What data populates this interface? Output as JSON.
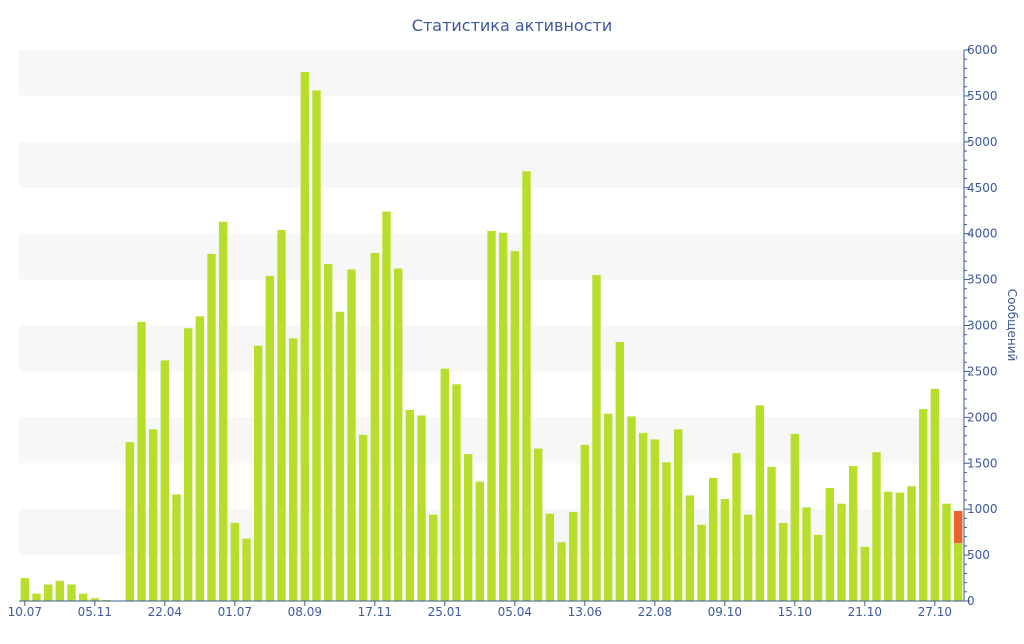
{
  "chart_data": {
    "type": "bar",
    "title": "Статистика активности",
    "ylabel": "Сообщений",
    "xlabel": "",
    "ylim": [
      0,
      6000
    ],
    "yticks": [
      0,
      500,
      1000,
      1500,
      2000,
      2500,
      3000,
      3500,
      4000,
      4500,
      5000,
      5500,
      6000
    ],
    "grid": "alternating horizontal bands",
    "y_axis_side": "right",
    "x_tick_labels": [
      {
        "index": 0,
        "label": "10.07"
      },
      {
        "index": 6,
        "label": "05.11"
      },
      {
        "index": 12,
        "label": "22.04"
      },
      {
        "index": 18,
        "label": "01.07"
      },
      {
        "index": 24,
        "label": "08.09"
      },
      {
        "index": 30,
        "label": "17.11"
      },
      {
        "index": 36,
        "label": "25.01"
      },
      {
        "index": 42,
        "label": "05.04"
      },
      {
        "index": 48,
        "label": "13.06"
      },
      {
        "index": 54,
        "label": "22.08"
      },
      {
        "index": 60,
        "label": "09.10"
      },
      {
        "index": 66,
        "label": "15.10"
      },
      {
        "index": 72,
        "label": "21.10"
      },
      {
        "index": 78,
        "label": "27.10"
      }
    ],
    "series": [
      {
        "color": "#b8de2c",
        "values": [
          250,
          80,
          180,
          220,
          180,
          80,
          30,
          10,
          0,
          1730,
          3040,
          1870,
          2620,
          1160,
          2970,
          3100,
          3780,
          4130,
          850,
          680,
          2780,
          3540,
          4040,
          2860,
          5760,
          5560,
          3670,
          3150,
          3610,
          1810,
          3790,
          4240,
          3620,
          2080,
          2020,
          940,
          2530,
          2360,
          1600,
          1300,
          4030,
          4010,
          3810,
          4680,
          1660,
          950,
          640,
          970,
          1700,
          3550,
          2040,
          2820,
          2010,
          1830,
          1760,
          1510,
          1870,
          1150,
          830,
          1340,
          1110,
          1610,
          940,
          2130,
          1460,
          850,
          1820,
          1020,
          720,
          1230,
          1060,
          1470,
          590,
          1620,
          1190,
          1180,
          1250,
          2090,
          2310,
          1060,
          630
        ]
      },
      {
        "color": "#e8642c",
        "values": [
          0,
          0,
          0,
          0,
          0,
          0,
          0,
          0,
          0,
          0,
          0,
          0,
          0,
          0,
          0,
          0,
          0,
          0,
          0,
          0,
          0,
          0,
          0,
          0,
          0,
          0,
          0,
          0,
          0,
          0,
          0,
          0,
          0,
          0,
          0,
          0,
          0,
          0,
          0,
          0,
          0,
          0,
          0,
          0,
          0,
          0,
          0,
          0,
          0,
          0,
          0,
          0,
          0,
          0,
          0,
          0,
          0,
          0,
          0,
          0,
          0,
          0,
          0,
          0,
          0,
          0,
          0,
          0,
          0,
          0,
          0,
          0,
          0,
          0,
          0,
          0,
          0,
          0,
          0,
          0,
          350
        ]
      }
    ]
  }
}
